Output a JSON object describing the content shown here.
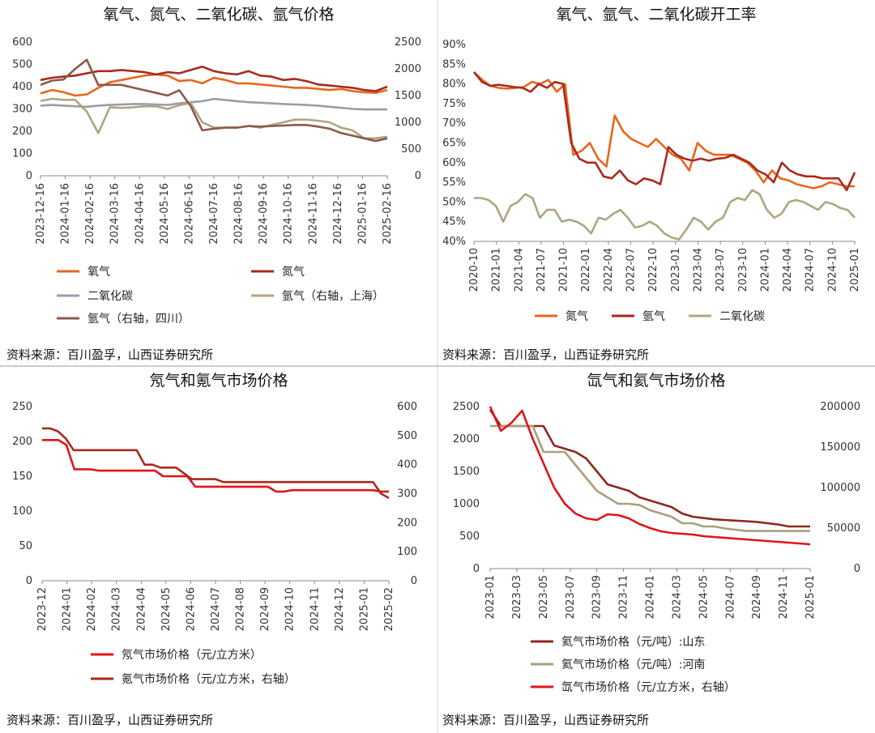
{
  "chart_data": [
    {
      "type": "line",
      "title": "氧气、氮气、二氧化碳、氩气价格",
      "source": "资料来源：百川盈孚，山西证券研究所",
      "x_ticks": [
        "2023-12-16",
        "2024-01-16",
        "2024-02-16",
        "2024-03-16",
        "2024-04-16",
        "2024-05-16",
        "2024-06-16",
        "2024-07-16",
        "2024-08-16",
        "2024-09-16",
        "2024-10-16",
        "2024-11-16",
        "2024-12-16",
        "2025-01-16",
        "2025-02-16"
      ],
      "y_left": {
        "ticks": [
          "0",
          "100",
          "200",
          "300",
          "400",
          "500",
          "600"
        ],
        "range": [
          0,
          600
        ]
      },
      "y_right": {
        "ticks": [
          "0",
          "500",
          "1000",
          "1500",
          "2000",
          "2500"
        ],
        "range": [
          0,
          2500
        ]
      },
      "series": [
        {
          "name": "氧气",
          "color": "#e8661e",
          "axis": "left",
          "values": [
            370,
            385,
            375,
            360,
            365,
            395,
            420,
            430,
            440,
            450,
            455,
            450,
            425,
            430,
            415,
            440,
            430,
            415,
            415,
            410,
            405,
            400,
            395,
            395,
            390,
            385,
            390,
            380,
            375,
            372,
            385
          ]
        },
        {
          "name": "氮气",
          "color": "#a82a1e",
          "axis": "left",
          "values": [
            430,
            440,
            445,
            450,
            460,
            470,
            470,
            475,
            470,
            465,
            455,
            465,
            460,
            475,
            490,
            470,
            460,
            455,
            470,
            450,
            445,
            430,
            435,
            425,
            410,
            405,
            400,
            395,
            385,
            380,
            400
          ]
        },
        {
          "name": "二氧化碳",
          "color": "#9f9aa8",
          "axis": "left",
          "values": [
            315,
            318,
            315,
            312,
            310,
            315,
            318,
            320,
            322,
            322,
            320,
            318,
            325,
            330,
            335,
            345,
            340,
            335,
            330,
            328,
            325,
            322,
            320,
            318,
            315,
            310,
            305,
            300,
            298,
            298,
            298
          ]
        },
        {
          "name": "氩气（右轴，上海）",
          "color": "#aea681",
          "axis": "right",
          "values": [
            1400,
            1440,
            1420,
            1420,
            1200,
            800,
            1280,
            1270,
            1280,
            1300,
            1300,
            1250,
            1320,
            1360,
            1000,
            900,
            900,
            900,
            930,
            900,
            950,
            1000,
            1050,
            1050,
            1030,
            1000,
            900,
            850,
            700,
            700,
            730
          ]
        },
        {
          "name": "氩气（右轴，四川）",
          "color": "#8b5a4a",
          "axis": "right",
          "values": [
            1700,
            1780,
            1800,
            2000,
            2170,
            1700,
            1700,
            1700,
            1650,
            1600,
            1550,
            1500,
            1600,
            1300,
            850,
            880,
            900,
            900,
            930,
            920,
            930,
            940,
            950,
            950,
            920,
            880,
            800,
            750,
            700,
            650,
            700
          ]
        }
      ]
    },
    {
      "type": "line",
      "title": "氧气、氩气、二氧化碳开工率",
      "source": "资料来源：百川盈孚，山西证券研究所",
      "x_ticks": [
        "2020-10",
        "2021-01",
        "2021-04",
        "2021-07",
        "2021-10",
        "2022-01",
        "2022-04",
        "2022-07",
        "2022-10",
        "2023-01",
        "2023-04",
        "2023-07",
        "2023-10",
        "2024-01",
        "2024-04",
        "2024-07",
        "2024-10",
        "2025-01"
      ],
      "y_left": {
        "ticks": [
          "40%",
          "45%",
          "50%",
          "55%",
          "60%",
          "65%",
          "70%",
          "75%",
          "80%",
          "85%",
          "90%"
        ],
        "range": [
          40,
          90
        ]
      },
      "series": [
        {
          "name": "氮气",
          "color": "#e8661e",
          "values": [
            83,
            81,
            79.5,
            79,
            78.8,
            79,
            79.2,
            80.5,
            80,
            81,
            78,
            80,
            62,
            63,
            65,
            61,
            59,
            72,
            68,
            66,
            65,
            64,
            66,
            64,
            62,
            61,
            58,
            65,
            63,
            62,
            62,
            62,
            61,
            60,
            58,
            55,
            58,
            56,
            55.5,
            54.5,
            54,
            53.5,
            54,
            55,
            54.5,
            54,
            54
          ]
        },
        {
          "name": "氩气",
          "color": "#a82a1e",
          "values": [
            83,
            80.5,
            79.5,
            79.8,
            79.5,
            79.2,
            79,
            78,
            80,
            79,
            80.5,
            80,
            65,
            61,
            60,
            60,
            56.5,
            56,
            58,
            55.5,
            54.5,
            56,
            55.5,
            54.5,
            64,
            62,
            61,
            60.5,
            61,
            60.5,
            61,
            61.2,
            62,
            61,
            60,
            58,
            57,
            55,
            60,
            58,
            57,
            56.5,
            56.5,
            56,
            56,
            56,
            53,
            57.5
          ]
        },
        {
          "name": "二氧化碳",
          "color": "#aea681",
          "values": [
            51,
            51,
            50.5,
            49,
            45,
            49,
            50,
            52,
            51,
            46,
            48,
            48,
            45,
            45.5,
            45,
            44,
            42,
            46,
            45.5,
            47,
            48,
            46,
            43.5,
            44,
            45,
            44,
            42,
            41,
            40.5,
            43,
            46,
            45,
            43,
            45,
            46,
            50,
            51,
            50.5,
            53,
            52,
            48,
            46,
            47,
            50,
            50.5,
            50,
            49,
            48,
            50,
            49.5,
            48.5,
            48,
            46
          ]
        }
      ]
    },
    {
      "type": "line",
      "title": "氖气和氪气市场价格",
      "source": "资料来源：百川盈孚，山西证券研究所",
      "x_ticks": [
        "2023-12",
        "2024-01",
        "2024-02",
        "2024-03",
        "2024-04",
        "2024-05",
        "2024-06",
        "2024-07",
        "2024-08",
        "2024-09",
        "2024-10",
        "2024-11",
        "2024-12",
        "2025-01",
        "2025-02"
      ],
      "y_left": {
        "ticks": [
          "0",
          "50",
          "100",
          "150",
          "200",
          "250"
        ],
        "range": [
          0,
          250
        ]
      },
      "y_right": {
        "ticks": [
          "0",
          "100",
          "200",
          "300",
          "400",
          "500",
          "600"
        ],
        "range": [
          0,
          600
        ]
      },
      "series": [
        {
          "name": "氖气市场价格（元/立方米）",
          "color": "#e0141a",
          "axis": "left",
          "values": [
            202,
            202,
            202,
            195,
            160,
            160,
            160,
            158,
            158,
            158,
            158,
            158,
            158,
            158,
            158,
            150,
            150,
            150,
            150,
            135,
            135,
            135,
            135,
            135,
            135,
            135,
            135,
            135,
            135,
            128,
            128,
            130,
            130,
            130,
            130,
            130,
            130,
            130,
            130,
            130,
            130,
            130,
            128,
            128
          ]
        },
        {
          "name": "氪气市场价格（元/立方米，右轴）",
          "color": "#a82a1e",
          "axis": "right",
          "values": [
            525,
            525,
            515,
            490,
            450,
            450,
            450,
            450,
            450,
            450,
            450,
            450,
            450,
            400,
            400,
            390,
            390,
            390,
            370,
            350,
            350,
            350,
            350,
            340,
            340,
            340,
            340,
            340,
            340,
            340,
            340,
            340,
            340,
            340,
            340,
            340,
            340,
            340,
            340,
            340,
            340,
            340,
            340,
            300,
            285
          ]
        }
      ]
    },
    {
      "type": "line",
      "title": "氙气和氦气市场价格",
      "source": "资料来源：百川盈孚，山西证券研究所",
      "x_ticks": [
        "2023-01",
        "2023-03",
        "2023-05",
        "2023-07",
        "2023-09",
        "2023-11",
        "2024-01",
        "2024-03",
        "2024-05",
        "2024-07",
        "2024-09",
        "2024-11",
        "2025-01"
      ],
      "y_left": {
        "ticks": [
          "0",
          "500",
          "1000",
          "1500",
          "2000",
          "2500"
        ],
        "range": [
          0,
          2500
        ]
      },
      "y_right": {
        "ticks": [
          "0",
          "50000",
          "100000",
          "150000",
          "200000"
        ],
        "range": [
          0,
          200000
        ]
      },
      "series": [
        {
          "name": "氦气市场价格（元/吨）:山东",
          "color": "#8b2a1f",
          "axis": "left",
          "values": [
            2450,
            2200,
            2200,
            2200,
            2200,
            2200,
            1900,
            1850,
            1800,
            1700,
            1500,
            1300,
            1250,
            1200,
            1100,
            1050,
            1000,
            950,
            850,
            800,
            780,
            760,
            750,
            740,
            730,
            720,
            700,
            680,
            650,
            650,
            650
          ]
        },
        {
          "name": "氦气市场价格（元/吨）:河南",
          "color": "#a8a07c",
          "axis": "left",
          "values": [
            2200,
            2200,
            2200,
            2200,
            2200,
            1800,
            1800,
            1800,
            1600,
            1400,
            1200,
            1100,
            1000,
            1000,
            980,
            900,
            850,
            800,
            700,
            700,
            650,
            650,
            620,
            600,
            580,
            580,
            580,
            580,
            580,
            580,
            580
          ]
        },
        {
          "name": "氙气市场价格（元/立方米，右轴）",
          "color": "#e0141a",
          "axis": "right",
          "values": [
            200000,
            170000,
            180000,
            195000,
            160000,
            130000,
            100000,
            80000,
            68000,
            62000,
            60000,
            67000,
            66000,
            62000,
            55000,
            50000,
            46000,
            44000,
            43000,
            42000,
            40000,
            39000,
            38000,
            37000,
            36000,
            35000,
            34000,
            33000,
            32000,
            31000,
            30000
          ]
        }
      ]
    }
  ]
}
